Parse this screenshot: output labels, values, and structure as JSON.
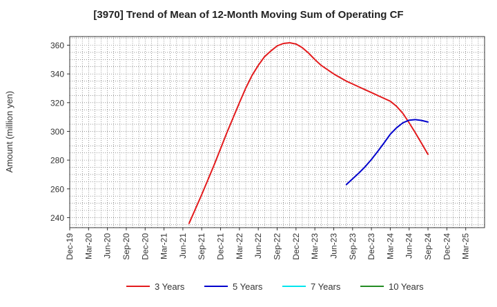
{
  "chart_data": {
    "type": "line",
    "title": "[3970]  Trend of Mean of 12-Month Moving Sum of Operating CF",
    "xlabel": "",
    "ylabel": "Amount (million yen)",
    "ylim": [
      233,
      366
    ],
    "yticks": [
      240,
      260,
      280,
      300,
      320,
      340,
      360
    ],
    "xlim": [
      0,
      22
    ],
    "x_tick_labels": [
      "Dec-19",
      "Mar-20",
      "Jun-20",
      "Sep-20",
      "Dec-20",
      "Mar-21",
      "Jun-21",
      "Sep-21",
      "Dec-21",
      "Mar-22",
      "Jun-22",
      "Sep-22",
      "Dec-22",
      "Mar-23",
      "Jun-23",
      "Sep-23",
      "Dec-23",
      "Mar-24",
      "Jun-24",
      "Sep-24",
      "Dec-24",
      "Mar-25"
    ],
    "grid": true,
    "legend_position": "bottom",
    "series": [
      {
        "name": "3 Years",
        "color": "#e31a1c",
        "x": [
          6.33,
          7.0,
          7.67,
          8.33,
          9.0,
          9.33,
          9.67,
          10.0,
          10.33,
          10.67,
          11.0,
          11.33,
          11.67,
          12.0,
          12.33,
          12.67,
          13.0,
          13.33,
          14.0,
          14.67,
          15.33,
          16.0,
          16.67,
          17.0,
          17.33,
          17.67,
          18.0,
          18.33,
          18.67,
          19.0
        ],
        "y": [
          236,
          256,
          277,
          299,
          320,
          330,
          339,
          346,
          352,
          356,
          359.5,
          361.2,
          361.7,
          360.8,
          358.3,
          354.5,
          350,
          346,
          340,
          335,
          331,
          327,
          323,
          321,
          317.5,
          312.5,
          306,
          299,
          291.5,
          284
        ]
      },
      {
        "name": "5 Years",
        "color": "#0000cc",
        "x": [
          14.67,
          15.0,
          15.33,
          15.67,
          16.0,
          16.33,
          16.67,
          17.0,
          17.33,
          17.67,
          18.0,
          18.33,
          18.67,
          19.0
        ],
        "y": [
          263,
          267,
          271,
          275.5,
          280.5,
          286,
          292,
          298,
          302.5,
          306,
          307.8,
          308.2,
          307.6,
          306.5
        ]
      },
      {
        "name": "7 Years",
        "color": "#00e5ee",
        "x": [],
        "y": []
      },
      {
        "name": "10 Years",
        "color": "#228b22",
        "x": [],
        "y": []
      }
    ]
  }
}
